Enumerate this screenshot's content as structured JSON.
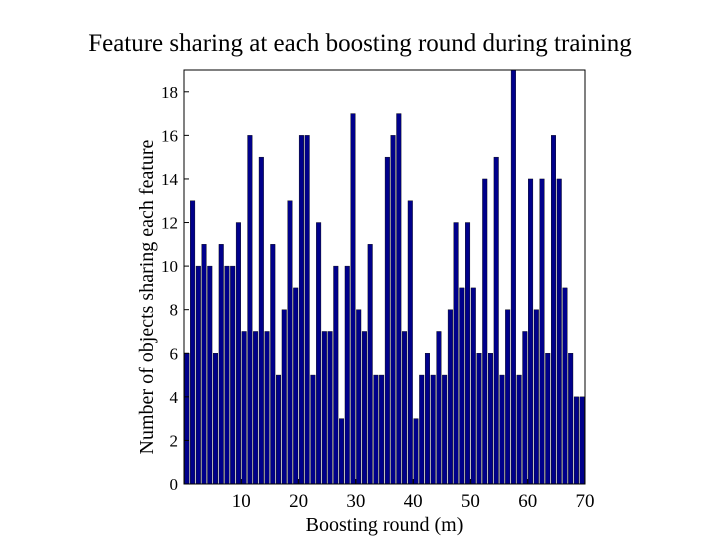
{
  "slide": {
    "title": "Feature sharing at each boosting round during training"
  },
  "chart_data": {
    "type": "bar",
    "title": "Feature sharing at each boosting round during training",
    "xlabel": "Boosting round (m)",
    "ylabel": "Number of objects sharing each feature",
    "xlim": [
      0,
      70
    ],
    "ylim": [
      0,
      19
    ],
    "xticks": [
      10,
      20,
      30,
      40,
      50,
      60,
      70
    ],
    "yticks": [
      0,
      2,
      4,
      6,
      8,
      10,
      12,
      14,
      16,
      18
    ],
    "x": [
      1,
      2,
      3,
      4,
      5,
      6,
      7,
      8,
      9,
      10,
      11,
      12,
      13,
      14,
      15,
      16,
      17,
      18,
      19,
      20,
      21,
      22,
      23,
      24,
      25,
      26,
      27,
      28,
      29,
      30,
      31,
      32,
      33,
      34,
      35,
      36,
      37,
      38,
      39,
      40,
      41,
      42,
      43,
      44,
      45,
      46,
      47,
      48,
      49,
      50,
      51,
      52,
      53,
      54,
      55,
      56,
      57,
      58,
      59,
      60,
      61,
      62,
      63,
      64,
      65,
      66,
      67,
      68,
      69,
      70
    ],
    "values": [
      6,
      13,
      10,
      11,
      10,
      6,
      11,
      10,
      10,
      12,
      7,
      16,
      7,
      15,
      7,
      11,
      5,
      8,
      13,
      9,
      16,
      16,
      5,
      12,
      7,
      7,
      10,
      3,
      10,
      17,
      8,
      7,
      11,
      5,
      5,
      15,
      16,
      17,
      7,
      13,
      3,
      5,
      6,
      5,
      7,
      5,
      8,
      12,
      9,
      12,
      9,
      6,
      14,
      6,
      15,
      5,
      8,
      19,
      5,
      7,
      14,
      8,
      14,
      6,
      16,
      14,
      9,
      6,
      4,
      4
    ],
    "bar_color": "#00008b",
    "bar_edge_color": "#000000",
    "grid": false
  }
}
